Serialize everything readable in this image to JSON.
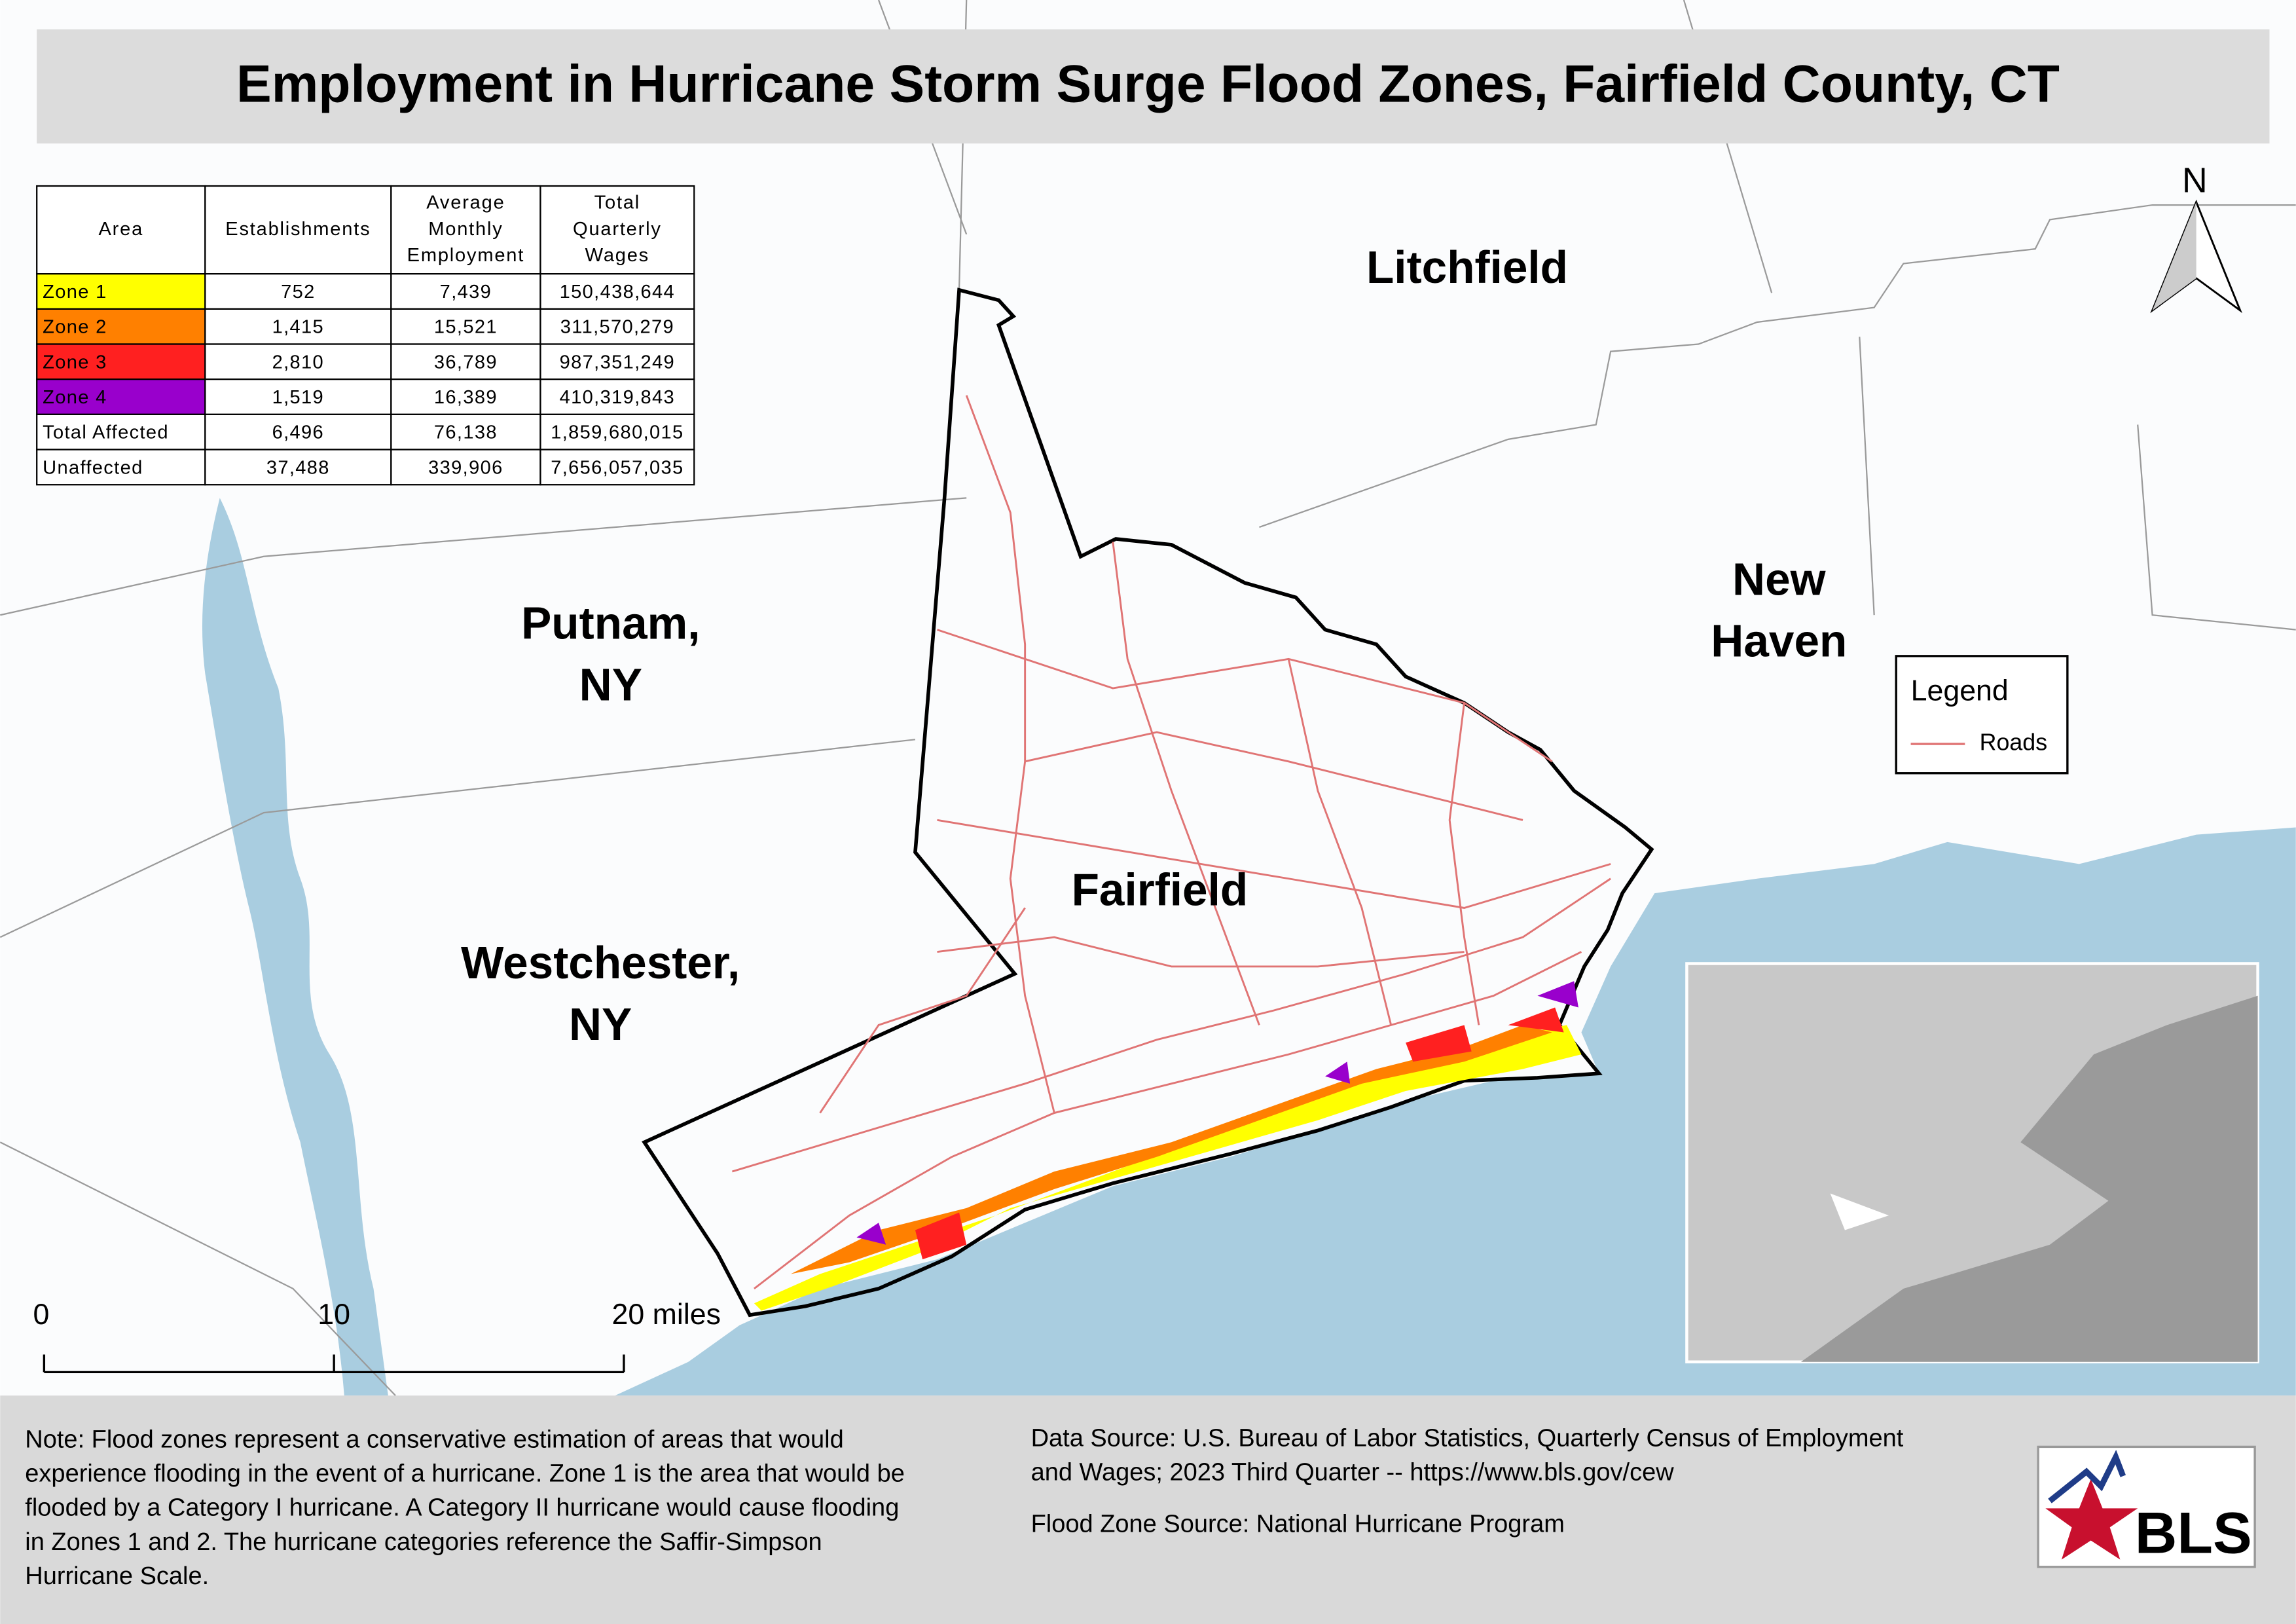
{
  "title": "Employment in Hurricane Storm Surge Flood Zones, Fairfield County, CT",
  "table": {
    "header": [
      [
        "Area"
      ],
      [
        "Establishments"
      ],
      [
        "Average",
        "Monthly",
        "Employment"
      ],
      [
        "Total",
        "Quarterly",
        "Wages"
      ]
    ],
    "rows": [
      [
        "Zone 1",
        "752",
        "7,439",
        "150,438,644"
      ],
      [
        "Zone 2",
        "1,415",
        "15,521",
        "311,570,279"
      ],
      [
        "Zone 3",
        "2,810",
        "36,789",
        "987,351,249"
      ],
      [
        "Zone 4",
        "1,519",
        "16,389",
        "410,319,843"
      ],
      [
        "Total Affected",
        "6,496",
        "76,138",
        "1,859,680,015"
      ],
      [
        "Unaffected",
        "37,488",
        "339,906",
        "7,656,057,035"
      ]
    ],
    "zone_colors": [
      "#ffff00",
      "#ff8000",
      "#ff2020",
      "#9900cc"
    ]
  },
  "labels": {
    "litchfield": [
      "Litchfield"
    ],
    "putnam": [
      "Putnam,",
      "NY"
    ],
    "new_haven": [
      "New",
      "Haven"
    ],
    "fairfield": [
      "Fairfield"
    ],
    "westchester": [
      "Westchester,",
      "NY"
    ]
  },
  "legend": {
    "title": "Legend",
    "items": [
      {
        "name": "Roads",
        "color": "#e07474"
      }
    ]
  },
  "north": "N",
  "scale_bar": [
    "0",
    "10",
    "20 miles"
  ],
  "note": [
    "Note: Flood zones represent a conservative estimation of areas that would",
    "experience flooding in the event of a hurricane. Zone 1 is the area that would be",
    "flooded by a Category I hurricane. A Category II hurricane would cause flooding",
    "in Zones 1 and 2. The hurricane categories reference the Saffir-Simpson",
    "Hurricane Scale."
  ],
  "source": [
    "Data Source: U.S. Bureau of Labor Statistics, Quarterly Census of Employment",
    "and Wages; 2023 Third Quarter -- https://www.bls.gov/cew",
    "Flood Zone Source: National Hurricane Program"
  ],
  "logo": "BLS"
}
